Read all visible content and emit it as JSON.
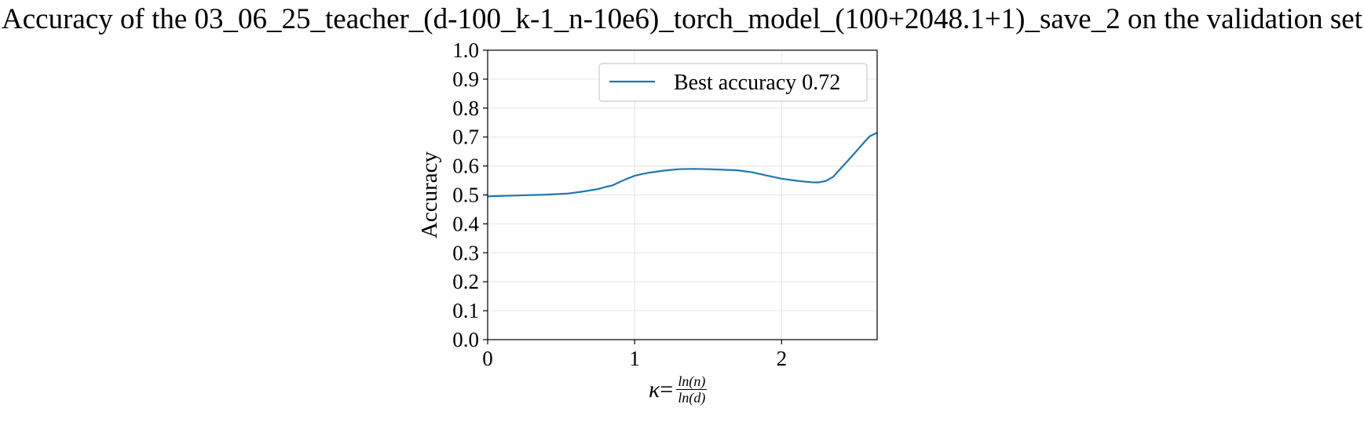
{
  "chart_data": {
    "type": "line",
    "title": "Accuracy of the 03_06_25_teacher_(d-100_k-1_n-10e6)_torch_model_(100+2048.1+1)_save_2 on the validation set",
    "xlabel": {
      "symbol": "κ",
      "equals": "=",
      "numerator": "ln(n)",
      "denominator": "ln(d)"
    },
    "ylabel": "Accuracy",
    "xlim": [
      0,
      2.65
    ],
    "ylim": [
      0.0,
      1.0
    ],
    "x_ticks": [
      "0",
      "1",
      "2"
    ],
    "y_ticks": [
      "0.0",
      "0.1",
      "0.2",
      "0.3",
      "0.4",
      "0.5",
      "0.6",
      "0.7",
      "0.8",
      "0.9",
      "1.0"
    ],
    "grid": true,
    "legend_position": "top-right",
    "series": [
      {
        "name": "Best accuracy 0.72",
        "color": "#1f77b4",
        "x": [
          0.0,
          0.2,
          0.4,
          0.55,
          0.65,
          0.75,
          0.8,
          0.85,
          0.9,
          0.95,
          1.0,
          1.05,
          1.1,
          1.2,
          1.3,
          1.4,
          1.5,
          1.6,
          1.7,
          1.8,
          1.9,
          2.0,
          2.1,
          2.2,
          2.25,
          2.3,
          2.35,
          2.4,
          2.45,
          2.5,
          2.55,
          2.6,
          2.65
        ],
        "y": [
          0.495,
          0.498,
          0.501,
          0.505,
          0.512,
          0.52,
          0.527,
          0.533,
          0.545,
          0.556,
          0.566,
          0.572,
          0.577,
          0.584,
          0.589,
          0.59,
          0.589,
          0.587,
          0.585,
          0.578,
          0.567,
          0.556,
          0.549,
          0.544,
          0.543,
          0.548,
          0.562,
          0.59,
          0.618,
          0.646,
          0.675,
          0.703,
          0.715
        ]
      }
    ]
  }
}
